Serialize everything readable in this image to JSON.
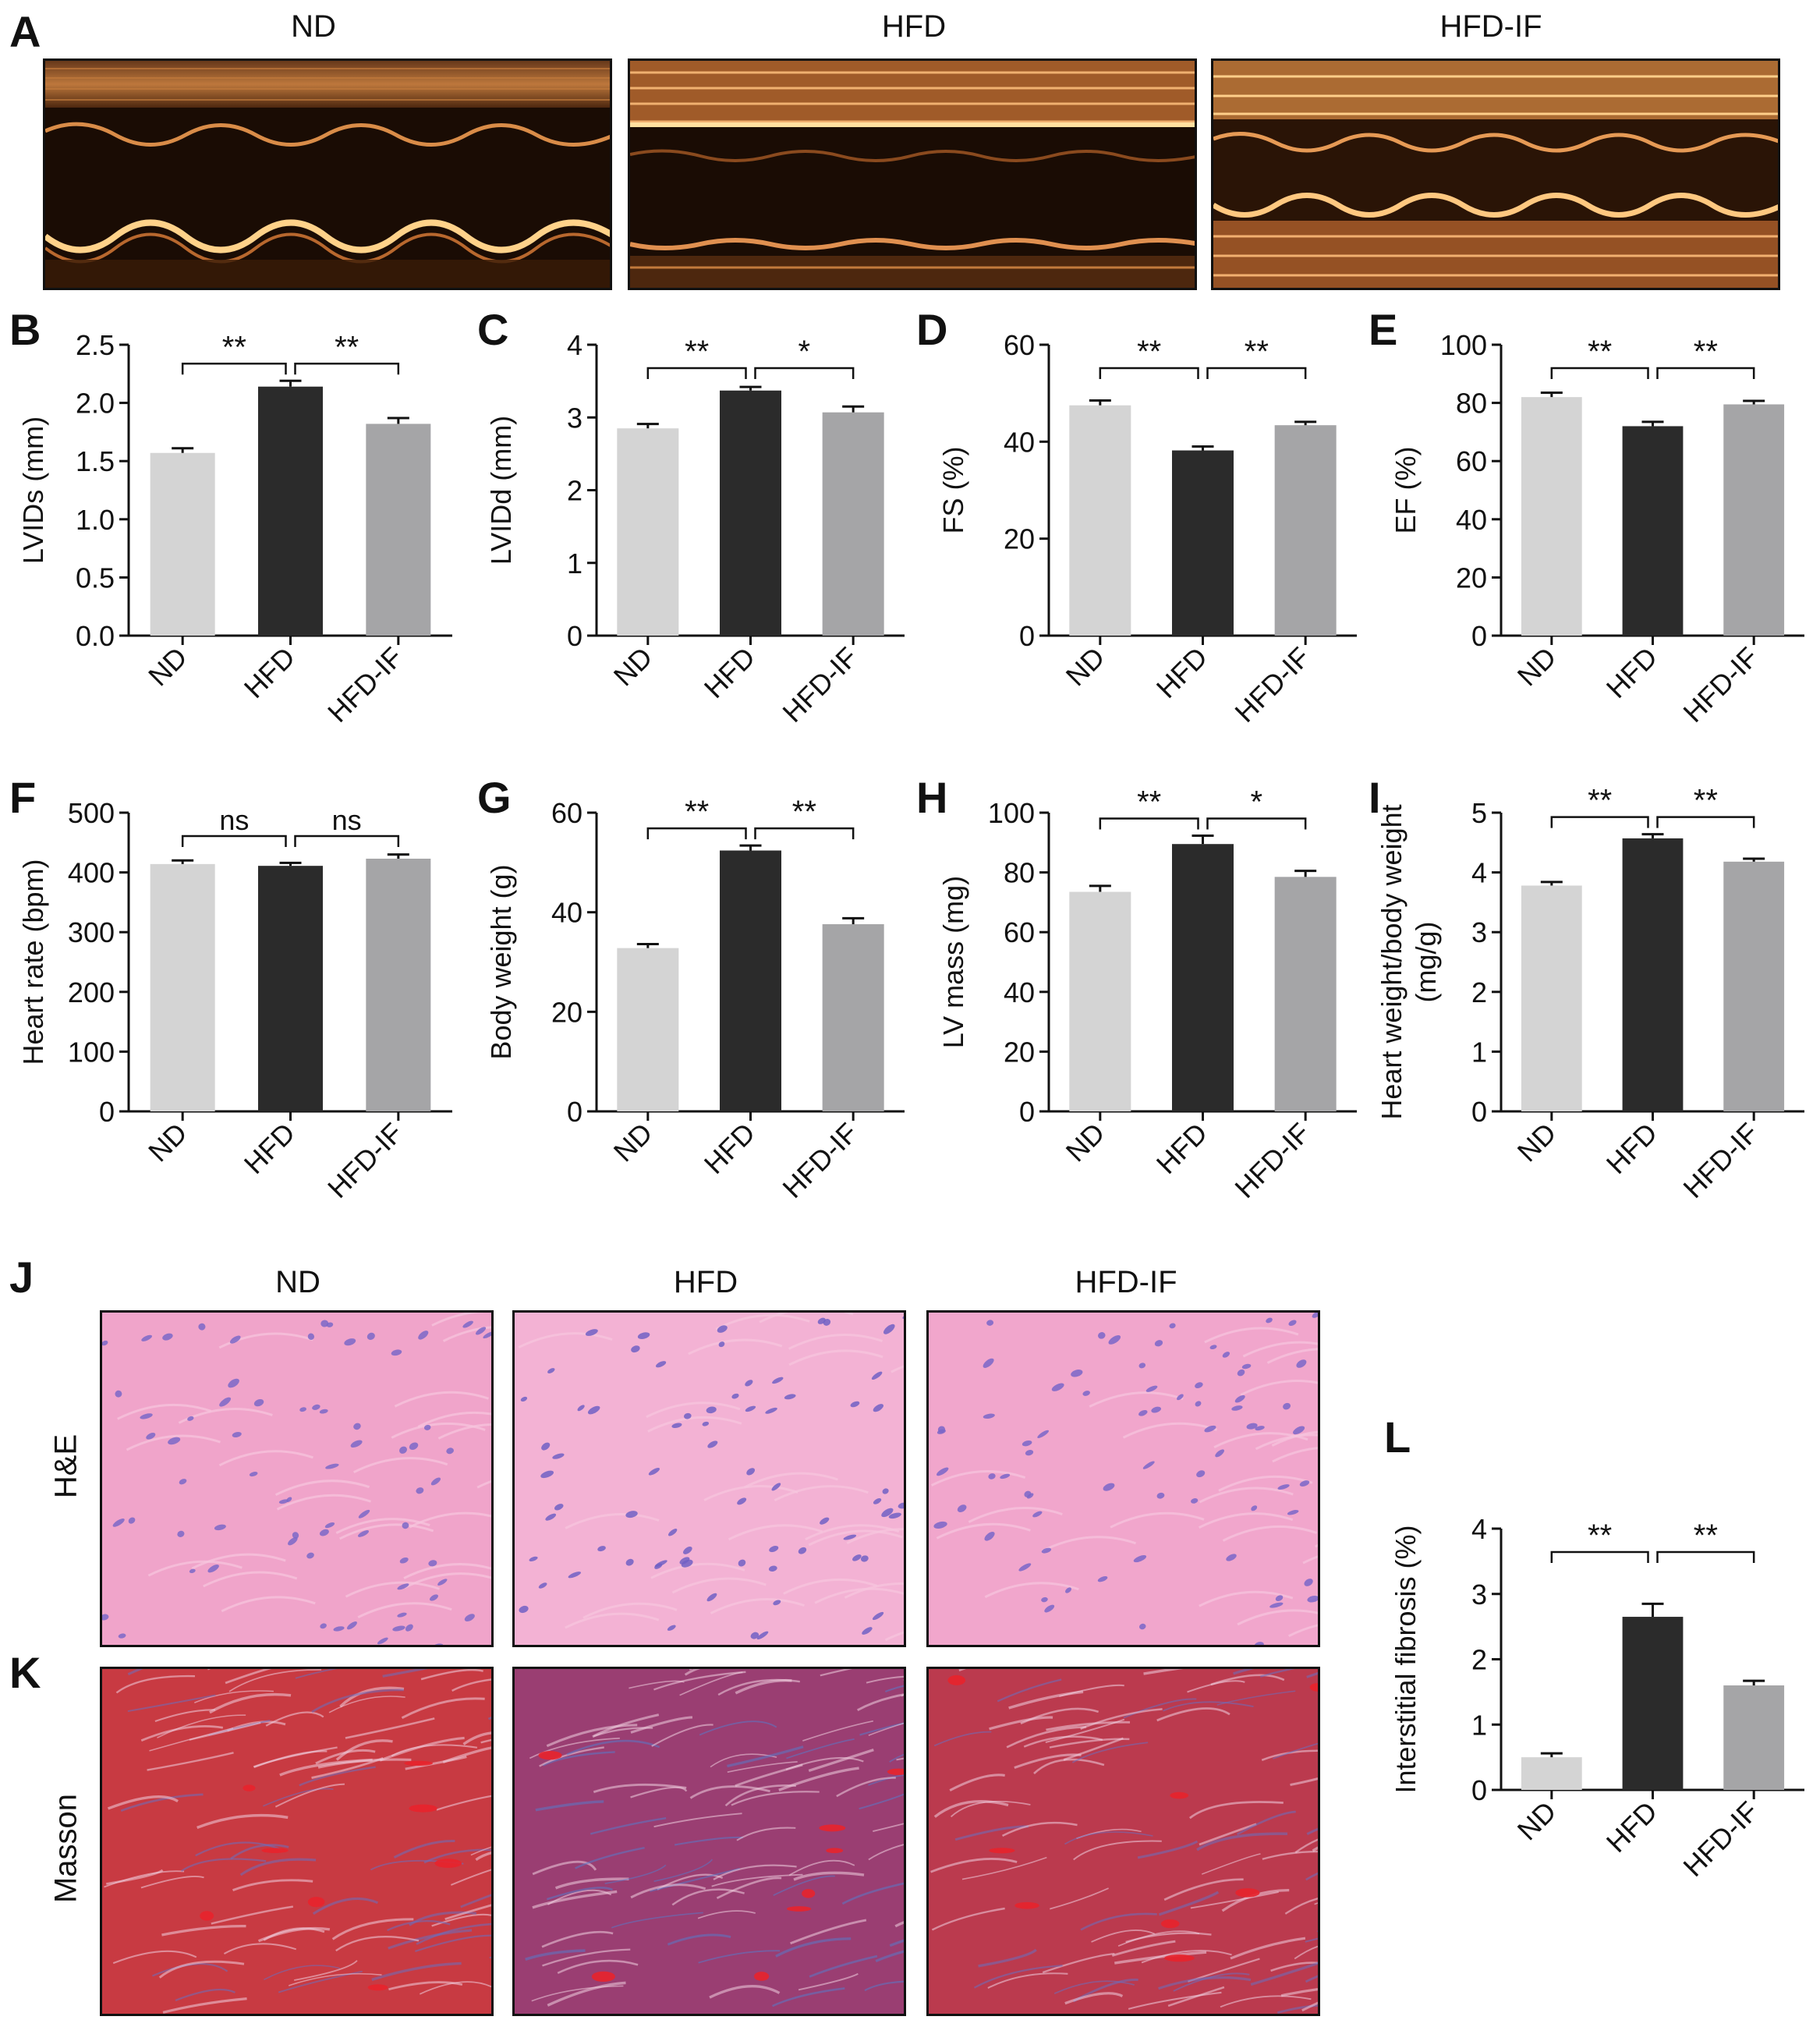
{
  "panel_labels": {
    "A": "A",
    "B": "B",
    "C": "C",
    "D": "D",
    "E": "E",
    "F": "F",
    "G": "G",
    "H": "H",
    "I": "I",
    "J": "J",
    "K": "K",
    "L": "L"
  },
  "echo_titles": [
    "ND",
    "HFD",
    "HFD-IF"
  ],
  "histo_titles": [
    "ND",
    "HFD",
    "HFD-IF"
  ],
  "stain_labels": {
    "he": "H&E",
    "masson": "Masson"
  },
  "colors": {
    "ND": "#d4d4d4",
    "HFD": "#2b2b2b",
    "HFD-IF": "#a5a5a7",
    "he_bg": "#f1a2c8",
    "he_nuclei": "#7b68c8",
    "masson_bg": "#c8323e",
    "masson_blue": "#6a6fc0",
    "echo_bg": "#1a0c04",
    "echo_tissue": "#e6924a"
  },
  "chart_data": [
    {
      "id": "B",
      "type": "bar",
      "categories": [
        "ND",
        "HFD",
        "HFD-IF"
      ],
      "values": [
        1.57,
        2.14,
        1.82
      ],
      "errors": [
        0.04,
        0.05,
        0.05
      ],
      "ylabel": "LVIDs (mm)",
      "ylim": [
        0,
        2.5
      ],
      "ticks": [
        0.0,
        0.5,
        1.0,
        1.5,
        2.0,
        2.5
      ],
      "tick_labels": [
        "0.0",
        "0.5",
        "1.0",
        "1.5",
        "2.0",
        "2.5"
      ],
      "significance": [
        {
          "from": 0,
          "to": 1,
          "label": "**"
        },
        {
          "from": 1,
          "to": 2,
          "label": "**"
        }
      ]
    },
    {
      "id": "C",
      "type": "bar",
      "categories": [
        "ND",
        "HFD",
        "HFD-IF"
      ],
      "values": [
        2.85,
        3.37,
        3.07
      ],
      "errors": [
        0.06,
        0.05,
        0.08
      ],
      "ylabel": "LVIDd (mm)",
      "ylim": [
        0,
        4
      ],
      "ticks": [
        0,
        1,
        2,
        3,
        4
      ],
      "tick_labels": [
        "0",
        "1",
        "2",
        "3",
        "4"
      ],
      "significance": [
        {
          "from": 0,
          "to": 1,
          "label": "**"
        },
        {
          "from": 1,
          "to": 2,
          "label": "*"
        }
      ]
    },
    {
      "id": "D",
      "type": "bar",
      "categories": [
        "ND",
        "HFD",
        "HFD-IF"
      ],
      "values": [
        47.5,
        38.2,
        43.4
      ],
      "errors": [
        1.0,
        0.8,
        0.7
      ],
      "ylabel": "FS (%)",
      "ylim": [
        0,
        60
      ],
      "ticks": [
        0,
        20,
        40,
        60
      ],
      "tick_labels": [
        "0",
        "20",
        "40",
        "60"
      ],
      "significance": [
        {
          "from": 0,
          "to": 1,
          "label": "**"
        },
        {
          "from": 1,
          "to": 2,
          "label": "**"
        }
      ]
    },
    {
      "id": "E",
      "type": "bar",
      "categories": [
        "ND",
        "HFD",
        "HFD-IF"
      ],
      "values": [
        82,
        72,
        79.5
      ],
      "errors": [
        1.5,
        1.5,
        1.2
      ],
      "ylabel": "EF (%)",
      "ylim": [
        0,
        100
      ],
      "ticks": [
        0,
        20,
        40,
        60,
        80,
        100
      ],
      "tick_labels": [
        "0",
        "20",
        "40",
        "60",
        "80",
        "100"
      ],
      "significance": [
        {
          "from": 0,
          "to": 1,
          "label": "**"
        },
        {
          "from": 1,
          "to": 2,
          "label": "**"
        }
      ]
    },
    {
      "id": "F",
      "type": "bar",
      "categories": [
        "ND",
        "HFD",
        "HFD-IF"
      ],
      "values": [
        414,
        411,
        423
      ],
      "errors": [
        6,
        5,
        7
      ],
      "ylabel": "Heart rate (bpm)",
      "ylim": [
        0,
        500
      ],
      "ticks": [
        0,
        100,
        200,
        300,
        400,
        500
      ],
      "tick_labels": [
        "0",
        "100",
        "200",
        "300",
        "400",
        "500"
      ],
      "significance": [
        {
          "from": 0,
          "to": 1,
          "label": "ns"
        },
        {
          "from": 1,
          "to": 2,
          "label": "ns"
        }
      ]
    },
    {
      "id": "G",
      "type": "bar",
      "categories": [
        "ND",
        "HFD",
        "HFD-IF"
      ],
      "values": [
        32.8,
        52.4,
        37.6
      ],
      "errors": [
        0.8,
        1.0,
        1.2
      ],
      "ylabel": "Body weight (g)",
      "ylim": [
        0,
        60
      ],
      "ticks": [
        0,
        20,
        40,
        60
      ],
      "tick_labels": [
        "0",
        "20",
        "40",
        "60"
      ],
      "significance": [
        {
          "from": 0,
          "to": 1,
          "label": "**"
        },
        {
          "from": 1,
          "to": 2,
          "label": "**"
        }
      ]
    },
    {
      "id": "H",
      "type": "bar",
      "categories": [
        "ND",
        "HFD",
        "HFD-IF"
      ],
      "values": [
        73.5,
        89.5,
        78.5
      ],
      "errors": [
        2.0,
        2.8,
        2.0
      ],
      "ylabel": "LV mass (mg)",
      "ylim": [
        0,
        100
      ],
      "ticks": [
        0,
        20,
        40,
        60,
        80,
        100
      ],
      "tick_labels": [
        "0",
        "20",
        "40",
        "60",
        "80",
        "100"
      ],
      "significance": [
        {
          "from": 0,
          "to": 1,
          "label": "**"
        },
        {
          "from": 1,
          "to": 2,
          "label": "*"
        }
      ]
    },
    {
      "id": "I",
      "type": "bar",
      "categories": [
        "ND",
        "HFD",
        "HFD-IF"
      ],
      "values": [
        3.78,
        4.57,
        4.18
      ],
      "errors": [
        0.06,
        0.07,
        0.05
      ],
      "ylabel": [
        "Heart weight/body weight",
        "(mg/g)"
      ],
      "ylim": [
        0,
        5
      ],
      "ticks": [
        0,
        1,
        2,
        3,
        4,
        5
      ],
      "tick_labels": [
        "0",
        "1",
        "2",
        "3",
        "4",
        "5"
      ],
      "significance": [
        {
          "from": 0,
          "to": 1,
          "label": "**"
        },
        {
          "from": 1,
          "to": 2,
          "label": "**"
        }
      ]
    },
    {
      "id": "L",
      "type": "bar",
      "categories": [
        "ND",
        "HFD",
        "HFD-IF"
      ],
      "values": [
        0.5,
        2.65,
        1.6
      ],
      "errors": [
        0.06,
        0.2,
        0.07
      ],
      "ylabel": "Interstitial fibrosis (%)",
      "ylim": [
        0,
        4
      ],
      "ticks": [
        0,
        1,
        2,
        3,
        4
      ],
      "tick_labels": [
        "0",
        "1",
        "2",
        "3",
        "4"
      ],
      "significance": [
        {
          "from": 0,
          "to": 1,
          "label": "**"
        },
        {
          "from": 1,
          "to": 2,
          "label": "**"
        }
      ]
    }
  ]
}
